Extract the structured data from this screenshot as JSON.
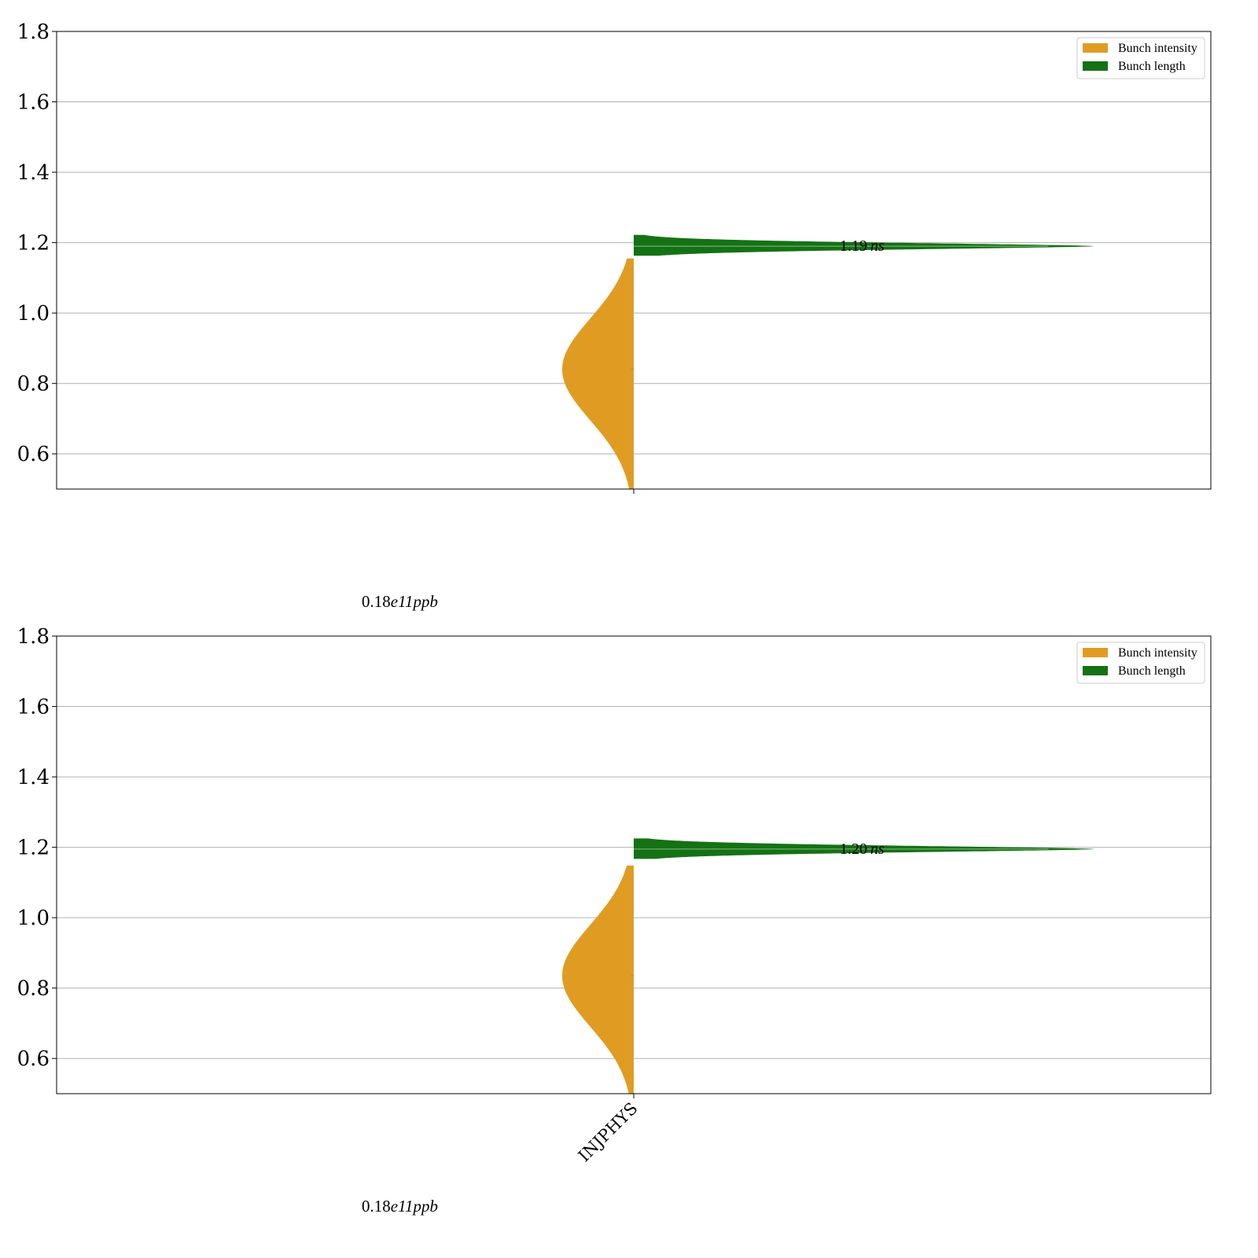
{
  "chart_data": [
    {
      "type": "violin",
      "category": "",
      "ylim": [
        0.5,
        1.8
      ],
      "yticks": [
        "0.6",
        "0.8",
        "1.0",
        "1.2",
        "1.4",
        "1.6",
        "1.8"
      ],
      "grid": true,
      "legend_position": "top-right",
      "series": [
        {
          "name": "Bunch intensity",
          "side": "left",
          "range": [
            0.5,
            1.155
          ],
          "peak": 0.84,
          "median": 0.84
        },
        {
          "name": "Bunch length",
          "side": "right",
          "range": [
            1.163,
            1.222
          ],
          "peak": 1.19,
          "median": 1.19
        }
      ],
      "median_label_value": "1.19",
      "median_label_unit": "ns",
      "bottom_label_value": "0.18",
      "bottom_label_exp": "e11",
      "bottom_label_unit": "ppb"
    },
    {
      "type": "violin",
      "category": "INJPHYS",
      "ylim": [
        0.5,
        1.8
      ],
      "yticks": [
        "0.6",
        "0.8",
        "1.0",
        "1.2",
        "1.4",
        "1.6",
        "1.8"
      ],
      "grid": true,
      "legend_position": "top-right",
      "series": [
        {
          "name": "Bunch intensity",
          "side": "left",
          "range": [
            0.5,
            1.148
          ],
          "peak": 0.835,
          "median": 0.835
        },
        {
          "name": "Bunch length",
          "side": "right",
          "range": [
            1.167,
            1.225
          ],
          "peak": 1.195,
          "median": 1.195
        }
      ],
      "median_label_value": "1.20",
      "median_label_unit": "ns",
      "bottom_label_value": "0.18",
      "bottom_label_exp": "e11",
      "bottom_label_unit": "ppb"
    }
  ],
  "colors": {
    "intensity": "#e09c22",
    "length": "#147214",
    "grid": "#b0b0b0"
  }
}
